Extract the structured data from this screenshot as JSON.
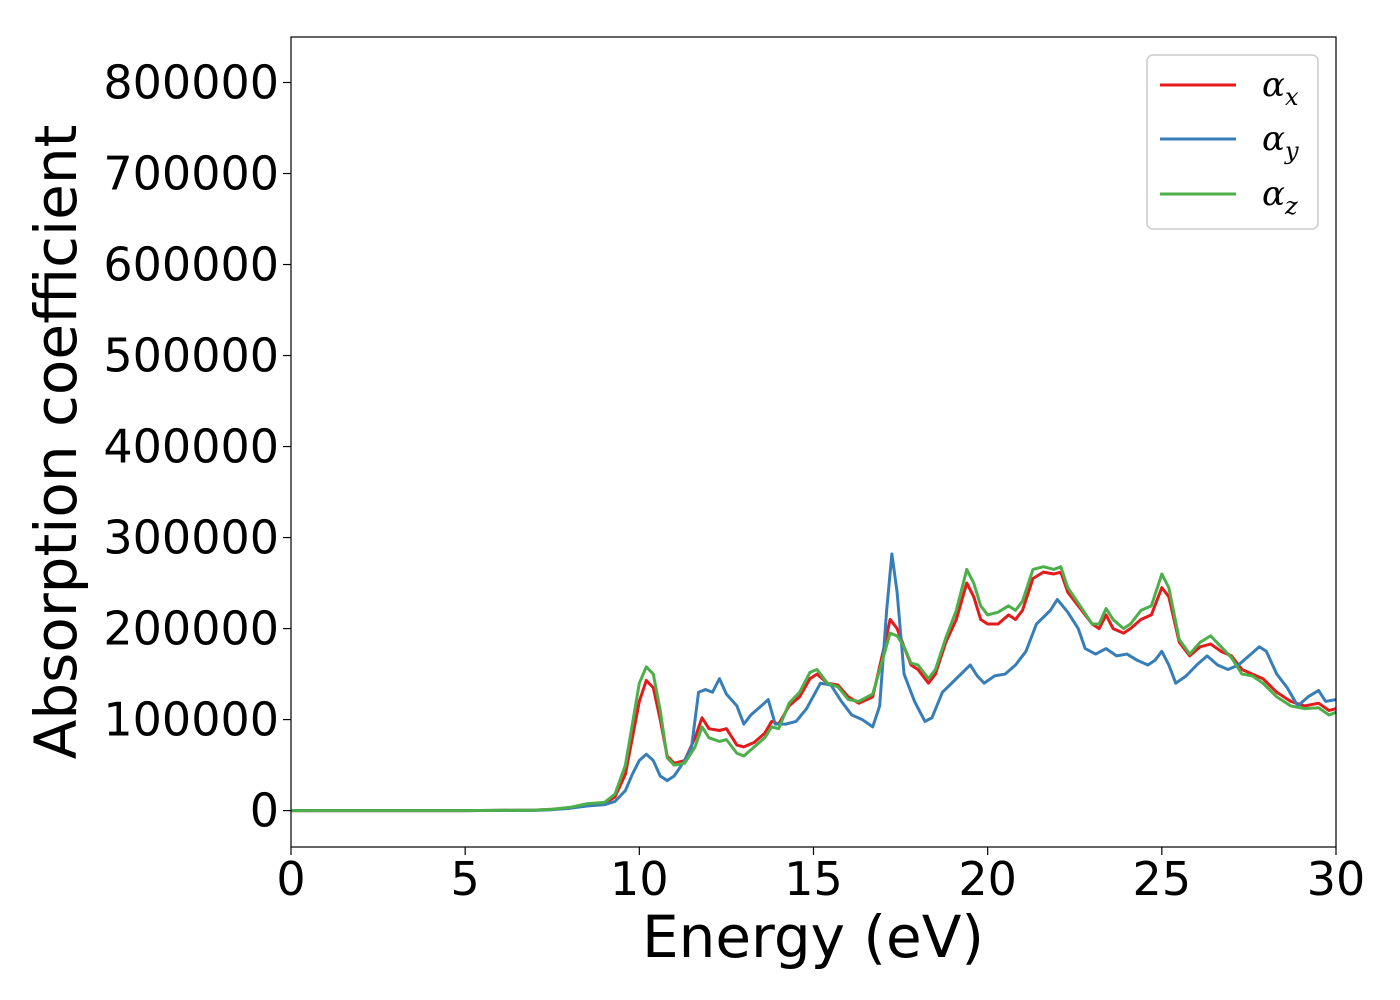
{
  "chart_data": {
    "type": "line",
    "xlabel": "Energy (eV)",
    "ylabel": "Absorption coefficient",
    "xlim": [
      0,
      30
    ],
    "ylim": [
      -40000,
      850000
    ],
    "xticks": [
      0,
      5,
      10,
      15,
      20,
      25,
      30
    ],
    "yticks": [
      0,
      100000,
      200000,
      300000,
      400000,
      500000,
      600000,
      700000,
      800000
    ],
    "xtick_labels": [
      "0",
      "5",
      "10",
      "15",
      "20",
      "25",
      "30"
    ],
    "ytick_labels": [
      "0",
      "100000",
      "200000",
      "300000",
      "400000",
      "500000",
      "600000",
      "700000",
      "800000"
    ],
    "grid": false,
    "legend_position": "top-right",
    "series": [
      {
        "name": "α_x",
        "label_base": "α",
        "label_sub": "x",
        "color": "#e41a1c",
        "points": [
          [
            0,
            0
          ],
          [
            5,
            0
          ],
          [
            7,
            500
          ],
          [
            7.5,
            1500
          ],
          [
            8,
            3000
          ],
          [
            8.5,
            7000
          ],
          [
            9,
            8000
          ],
          [
            9.3,
            15000
          ],
          [
            9.6,
            40000
          ],
          [
            9.8,
            80000
          ],
          [
            10,
            120000
          ],
          [
            10.2,
            143000
          ],
          [
            10.4,
            135000
          ],
          [
            10.6,
            100000
          ],
          [
            10.8,
            60000
          ],
          [
            11,
            52000
          ],
          [
            11.3,
            55000
          ],
          [
            11.6,
            80000
          ],
          [
            11.8,
            102000
          ],
          [
            12,
            90000
          ],
          [
            12.3,
            88000
          ],
          [
            12.5,
            90000
          ],
          [
            12.8,
            72000
          ],
          [
            13,
            70000
          ],
          [
            13.3,
            75000
          ],
          [
            13.6,
            85000
          ],
          [
            13.8,
            98000
          ],
          [
            14,
            95000
          ],
          [
            14.3,
            115000
          ],
          [
            14.6,
            125000
          ],
          [
            14.9,
            145000
          ],
          [
            15.1,
            150000
          ],
          [
            15.4,
            140000
          ],
          [
            15.7,
            138000
          ],
          [
            16,
            125000
          ],
          [
            16.3,
            118000
          ],
          [
            16.7,
            125000
          ],
          [
            17,
            175000
          ],
          [
            17.2,
            210000
          ],
          [
            17.4,
            200000
          ],
          [
            17.6,
            180000
          ],
          [
            17.8,
            160000
          ],
          [
            18,
            155000
          ],
          [
            18.3,
            140000
          ],
          [
            18.5,
            150000
          ],
          [
            18.8,
            185000
          ],
          [
            19.1,
            210000
          ],
          [
            19.4,
            250000
          ],
          [
            19.6,
            235000
          ],
          [
            19.8,
            210000
          ],
          [
            20,
            205000
          ],
          [
            20.3,
            205000
          ],
          [
            20.6,
            215000
          ],
          [
            20.8,
            210000
          ],
          [
            21,
            220000
          ],
          [
            21.3,
            255000
          ],
          [
            21.6,
            262000
          ],
          [
            21.9,
            260000
          ],
          [
            22.1,
            262000
          ],
          [
            22.3,
            240000
          ],
          [
            22.6,
            225000
          ],
          [
            23,
            205000
          ],
          [
            23.2,
            200000
          ],
          [
            23.4,
            215000
          ],
          [
            23.6,
            200000
          ],
          [
            23.9,
            195000
          ],
          [
            24.1,
            200000
          ],
          [
            24.4,
            210000
          ],
          [
            24.7,
            215000
          ],
          [
            25,
            245000
          ],
          [
            25.2,
            235000
          ],
          [
            25.5,
            185000
          ],
          [
            25.8,
            170000
          ],
          [
            26.1,
            180000
          ],
          [
            26.4,
            183000
          ],
          [
            26.7,
            175000
          ],
          [
            27,
            170000
          ],
          [
            27.3,
            155000
          ],
          [
            27.6,
            150000
          ],
          [
            27.9,
            145000
          ],
          [
            28.3,
            130000
          ],
          [
            28.7,
            120000
          ],
          [
            29.1,
            115000
          ],
          [
            29.5,
            118000
          ],
          [
            29.8,
            110000
          ],
          [
            30,
            112000
          ]
        ]
      },
      {
        "name": "α_y",
        "label_base": "α",
        "label_sub": "y",
        "color": "#377eb8",
        "points": [
          [
            0,
            0
          ],
          [
            5,
            0
          ],
          [
            7,
            300
          ],
          [
            7.5,
            1000
          ],
          [
            8,
            2500
          ],
          [
            8.5,
            5000
          ],
          [
            9,
            6500
          ],
          [
            9.3,
            10000
          ],
          [
            9.6,
            22000
          ],
          [
            9.8,
            40000
          ],
          [
            10,
            55000
          ],
          [
            10.2,
            62000
          ],
          [
            10.4,
            55000
          ],
          [
            10.6,
            38000
          ],
          [
            10.8,
            33000
          ],
          [
            11,
            38000
          ],
          [
            11.3,
            55000
          ],
          [
            11.5,
            70000
          ],
          [
            11.7,
            130000
          ],
          [
            11.9,
            133000
          ],
          [
            12.1,
            130000
          ],
          [
            12.3,
            145000
          ],
          [
            12.5,
            128000
          ],
          [
            12.8,
            115000
          ],
          [
            13,
            95000
          ],
          [
            13.2,
            105000
          ],
          [
            13.5,
            115000
          ],
          [
            13.7,
            122000
          ],
          [
            13.9,
            95000
          ],
          [
            14.2,
            95000
          ],
          [
            14.5,
            98000
          ],
          [
            14.8,
            112000
          ],
          [
            15.2,
            140000
          ],
          [
            15.5,
            138000
          ],
          [
            15.8,
            120000
          ],
          [
            16.1,
            105000
          ],
          [
            16.4,
            100000
          ],
          [
            16.7,
            92000
          ],
          [
            16.9,
            115000
          ],
          [
            17.1,
            220000
          ],
          [
            17.25,
            282000
          ],
          [
            17.4,
            240000
          ],
          [
            17.6,
            150000
          ],
          [
            17.9,
            120000
          ],
          [
            18.2,
            98000
          ],
          [
            18.4,
            102000
          ],
          [
            18.7,
            130000
          ],
          [
            19.1,
            145000
          ],
          [
            19.5,
            160000
          ],
          [
            19.7,
            148000
          ],
          [
            19.9,
            140000
          ],
          [
            20.2,
            148000
          ],
          [
            20.5,
            150000
          ],
          [
            20.8,
            160000
          ],
          [
            21.1,
            175000
          ],
          [
            21.4,
            205000
          ],
          [
            21.8,
            220000
          ],
          [
            22,
            232000
          ],
          [
            22.3,
            218000
          ],
          [
            22.6,
            200000
          ],
          [
            22.8,
            178000
          ],
          [
            23.1,
            172000
          ],
          [
            23.4,
            178000
          ],
          [
            23.7,
            170000
          ],
          [
            24,
            172000
          ],
          [
            24.3,
            165000
          ],
          [
            24.6,
            160000
          ],
          [
            24.8,
            165000
          ],
          [
            25,
            175000
          ],
          [
            25.2,
            160000
          ],
          [
            25.4,
            140000
          ],
          [
            25.7,
            148000
          ],
          [
            26,
            160000
          ],
          [
            26.3,
            170000
          ],
          [
            26.6,
            160000
          ],
          [
            26.9,
            155000
          ],
          [
            27.2,
            160000
          ],
          [
            27.5,
            170000
          ],
          [
            27.8,
            180000
          ],
          [
            28,
            175000
          ],
          [
            28.3,
            150000
          ],
          [
            28.6,
            135000
          ],
          [
            28.9,
            115000
          ],
          [
            29.2,
            125000
          ],
          [
            29.5,
            132000
          ],
          [
            29.7,
            120000
          ],
          [
            30,
            122000
          ]
        ]
      },
      {
        "name": "α_z",
        "label_base": "α",
        "label_sub": "z",
        "color": "#4daf4a",
        "points": [
          [
            0,
            0
          ],
          [
            5,
            0
          ],
          [
            7,
            500
          ],
          [
            7.5,
            1500
          ],
          [
            8,
            3500
          ],
          [
            8.5,
            7500
          ],
          [
            9,
            9000
          ],
          [
            9.3,
            18000
          ],
          [
            9.6,
            50000
          ],
          [
            9.8,
            95000
          ],
          [
            10,
            140000
          ],
          [
            10.2,
            158000
          ],
          [
            10.4,
            150000
          ],
          [
            10.6,
            110000
          ],
          [
            10.8,
            58000
          ],
          [
            11,
            50000
          ],
          [
            11.3,
            52000
          ],
          [
            11.6,
            70000
          ],
          [
            11.8,
            92000
          ],
          [
            12,
            80000
          ],
          [
            12.3,
            76000
          ],
          [
            12.5,
            78000
          ],
          [
            12.8,
            63000
          ],
          [
            13,
            60000
          ],
          [
            13.3,
            70000
          ],
          [
            13.6,
            80000
          ],
          [
            13.8,
            92000
          ],
          [
            14,
            90000
          ],
          [
            14.3,
            118000
          ],
          [
            14.6,
            130000
          ],
          [
            14.9,
            152000
          ],
          [
            15.1,
            155000
          ],
          [
            15.4,
            140000
          ],
          [
            15.7,
            136000
          ],
          [
            16,
            122000
          ],
          [
            16.3,
            120000
          ],
          [
            16.7,
            128000
          ],
          [
            17,
            168000
          ],
          [
            17.2,
            195000
          ],
          [
            17.4,
            192000
          ],
          [
            17.6,
            180000
          ],
          [
            17.8,
            162000
          ],
          [
            18,
            160000
          ],
          [
            18.3,
            145000
          ],
          [
            18.5,
            155000
          ],
          [
            18.8,
            190000
          ],
          [
            19.1,
            220000
          ],
          [
            19.4,
            265000
          ],
          [
            19.6,
            250000
          ],
          [
            19.8,
            225000
          ],
          [
            20,
            215000
          ],
          [
            20.3,
            218000
          ],
          [
            20.6,
            225000
          ],
          [
            20.8,
            220000
          ],
          [
            21,
            230000
          ],
          [
            21.3,
            265000
          ],
          [
            21.6,
            268000
          ],
          [
            21.9,
            265000
          ],
          [
            22.1,
            268000
          ],
          [
            22.3,
            245000
          ],
          [
            22.6,
            228000
          ],
          [
            23,
            205000
          ],
          [
            23.2,
            205000
          ],
          [
            23.4,
            222000
          ],
          [
            23.6,
            210000
          ],
          [
            23.9,
            200000
          ],
          [
            24.1,
            205000
          ],
          [
            24.4,
            220000
          ],
          [
            24.7,
            225000
          ],
          [
            25,
            260000
          ],
          [
            25.2,
            245000
          ],
          [
            25.5,
            188000
          ],
          [
            25.8,
            172000
          ],
          [
            26.1,
            185000
          ],
          [
            26.4,
            192000
          ],
          [
            26.7,
            180000
          ],
          [
            27,
            168000
          ],
          [
            27.3,
            150000
          ],
          [
            27.6,
            148000
          ],
          [
            27.9,
            140000
          ],
          [
            28.3,
            125000
          ],
          [
            28.7,
            115000
          ],
          [
            29.1,
            112000
          ],
          [
            29.5,
            113000
          ],
          [
            29.8,
            105000
          ],
          [
            30,
            108000
          ]
        ]
      }
    ]
  }
}
